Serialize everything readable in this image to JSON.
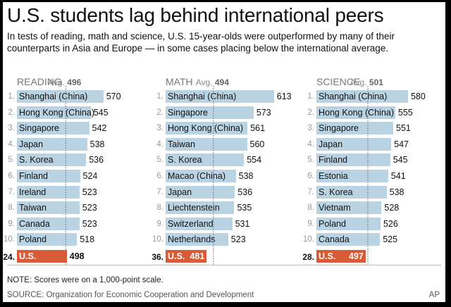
{
  "title": "U.S. students lag behind international peers",
  "subtitle": "In tests of reading, math and science, U.S. 15-year-olds were outperformed by many of their counterparts in Asia and Europe — in some cases placing below the international average.",
  "note": "NOTE: Scores were on a 1,000-point scale.",
  "source": "SOURCE: Organization for Economic Cooperation and Development",
  "credit": "AP",
  "colors": {
    "bar": "#bad3e3",
    "us_bar": "#d85a36",
    "avg_line": "#777777"
  },
  "chart_data": [
    {
      "type": "bar",
      "title": "READING",
      "avg_label": "Avg.",
      "avg_value": 496,
      "ranks": [
        "1.",
        "2.",
        "3.",
        "4.",
        "5.",
        "6.",
        "7.",
        "8.",
        "9.",
        "10.",
        "24."
      ],
      "categories": [
        "Shanghai (China)",
        "Hong Kong (China)",
        "Singapore",
        "Japan",
        "S. Korea",
        "Finland",
        "Ireland",
        "Taiwan",
        "Canada",
        "Poland",
        "U.S."
      ],
      "values": [
        570,
        545,
        542,
        538,
        536,
        524,
        523,
        523,
        523,
        518,
        498
      ]
    },
    {
      "type": "bar",
      "title": "MATH",
      "avg_label": "Avg.",
      "avg_value": 494,
      "ranks": [
        "1.",
        "2.",
        "3.",
        "4.",
        "5.",
        "6.",
        "7.",
        "8.",
        "9.",
        "10.",
        "36."
      ],
      "categories": [
        "Shanghai (China)",
        "Singapore",
        "Hong Kong (China)",
        "Taiwan",
        "S. Korea",
        "Macao (China)",
        "Japan",
        "Liechtenstein",
        "Switzerland",
        "Netherlands",
        "U.S."
      ],
      "values": [
        613,
        573,
        561,
        560,
        554,
        538,
        536,
        535,
        531,
        523,
        481
      ]
    },
    {
      "type": "bar",
      "title": "SCIENCE",
      "avg_label": "Avg.",
      "avg_value": 501,
      "ranks": [
        "1.",
        "2.",
        "3.",
        "4.",
        "5.",
        "6.",
        "7.",
        "8.",
        "9.",
        "10.",
        "28."
      ],
      "categories": [
        "Shanghai (China)",
        "Hong Kong (China)",
        "Singapore",
        "Japan",
        "Finland",
        "Estonia",
        "S. Korea",
        "Vietnam",
        "Poland",
        "Canada",
        "U.S."
      ],
      "values": [
        580,
        555,
        551,
        547,
        545,
        541,
        538,
        528,
        526,
        525,
        497
      ]
    }
  ]
}
